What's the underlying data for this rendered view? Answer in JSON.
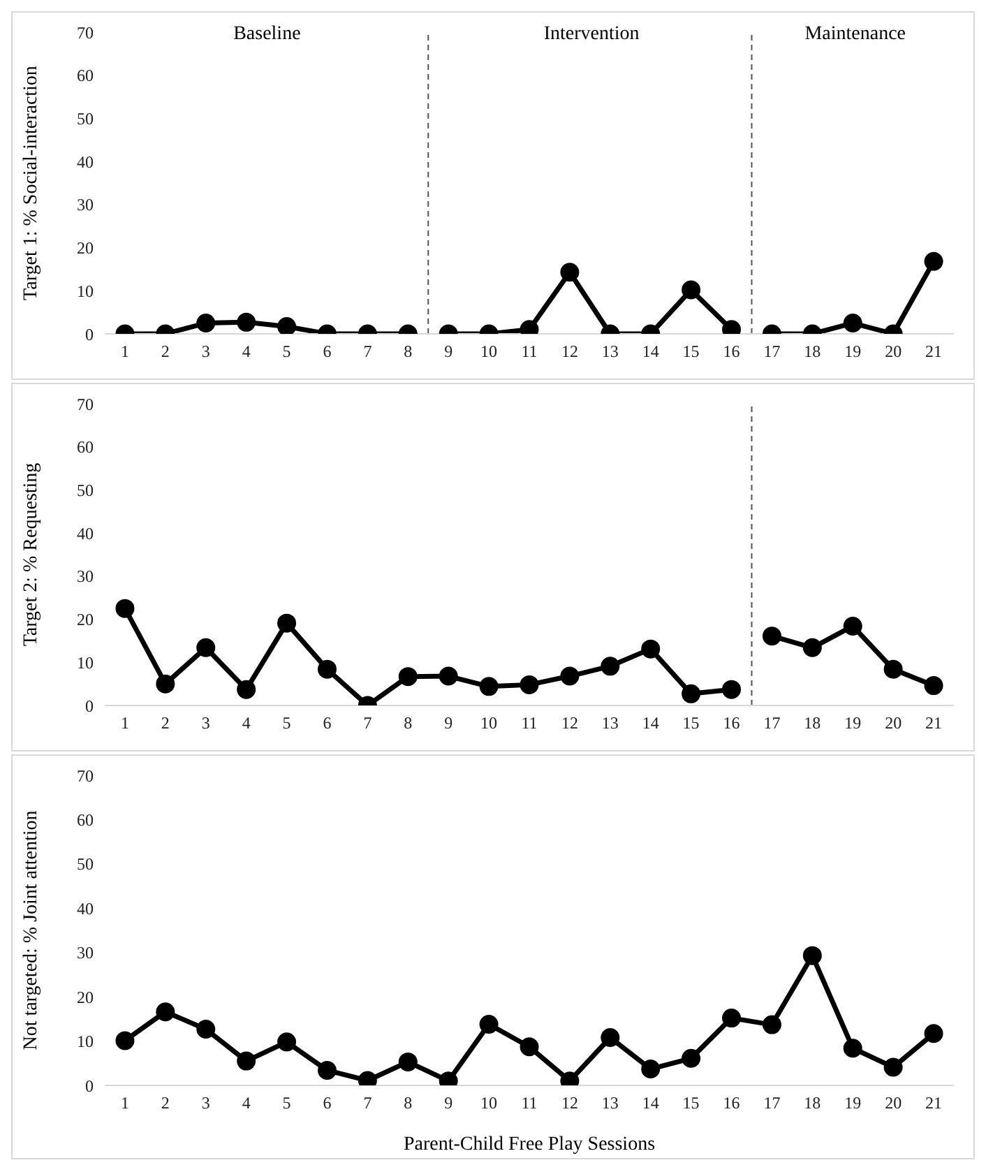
{
  "chart_data": [
    {
      "type": "line",
      "ylabel": "Target 1: % Social-interaction",
      "xlim": [
        0.5,
        21.5
      ],
      "xticks": [
        1,
        2,
        3,
        4,
        5,
        6,
        7,
        8,
        9,
        10,
        11,
        12,
        13,
        14,
        15,
        16,
        17,
        18,
        19,
        20,
        21
      ],
      "ylim": [
        0,
        70
      ],
      "yticks": [
        0,
        10,
        20,
        30,
        40,
        50,
        60,
        70
      ],
      "marker": "circle",
      "line_style": "solid",
      "annotations": [
        "Baseline",
        "Intervention",
        "Maintenance"
      ],
      "ref_lines": [
        {
          "axis": "x",
          "value": 8.5,
          "color": "#555555",
          "line_style": "dashed"
        },
        {
          "axis": "x",
          "value": 16.5,
          "color": "#555555",
          "line_style": "dashed"
        }
      ],
      "series": [
        {
          "color": "#000000",
          "x": [
            1,
            2,
            3,
            4,
            5,
            6,
            7,
            8
          ],
          "values": [
            0,
            0,
            2.5,
            2.7,
            1.7,
            0,
            0,
            0
          ]
        },
        {
          "color": "#000000",
          "x": [
            9,
            10,
            11,
            12,
            13,
            14,
            15,
            16
          ],
          "values": [
            0,
            0,
            1,
            14.3,
            0,
            0,
            10.2,
            1
          ]
        },
        {
          "color": "#000000",
          "x": [
            17,
            18,
            19,
            20,
            21
          ],
          "values": [
            0,
            0,
            2.5,
            0,
            16.8
          ]
        }
      ]
    },
    {
      "type": "line",
      "ylabel": "Target 2: % Requesting",
      "xlim": [
        0.5,
        21.5
      ],
      "xticks": [
        1,
        2,
        3,
        4,
        5,
        6,
        7,
        8,
        9,
        10,
        11,
        12,
        13,
        14,
        15,
        16,
        17,
        18,
        19,
        20,
        21
      ],
      "ylim": [
        0,
        70
      ],
      "yticks": [
        0,
        10,
        20,
        30,
        40,
        50,
        60,
        70
      ],
      "marker": "circle",
      "line_style": "solid",
      "ref_lines": [
        {
          "axis": "x",
          "value": 16.5,
          "color": "#555555",
          "line_style": "dashed"
        }
      ],
      "series": [
        {
          "color": "#000000",
          "x": [
            1,
            2,
            3,
            4,
            5,
            6,
            7,
            8,
            9,
            10,
            11,
            12,
            13,
            14,
            15,
            16
          ],
          "values": [
            22.5,
            5,
            13.4,
            3.7,
            19.1,
            8.4,
            0,
            6.7,
            6.8,
            4.4,
            4.8,
            6.8,
            9.1,
            13.1,
            2.7,
            3.7
          ]
        },
        {
          "color": "#000000",
          "x": [
            17,
            18,
            19,
            20,
            21
          ],
          "values": [
            16.1,
            13.4,
            18.4,
            8.4,
            4.6
          ]
        }
      ]
    },
    {
      "type": "line",
      "ylabel": "Not targeted: % Joint attention",
      "xlabel": "Parent-Child Free Play Sessions",
      "xlim": [
        0.5,
        21.5
      ],
      "xticks": [
        1,
        2,
        3,
        4,
        5,
        6,
        7,
        8,
        9,
        10,
        11,
        12,
        13,
        14,
        15,
        16,
        17,
        18,
        19,
        20,
        21
      ],
      "ylim": [
        0,
        70
      ],
      "yticks": [
        0,
        10,
        20,
        30,
        40,
        50,
        60,
        70
      ],
      "marker": "circle",
      "line_style": "solid",
      "series": [
        {
          "color": "#000000",
          "x": [
            1,
            2,
            3,
            4,
            5,
            6,
            7,
            8,
            9,
            10,
            11,
            12,
            13,
            14,
            15,
            16,
            17,
            18,
            19,
            20,
            21
          ],
          "values": [
            10.1,
            16.6,
            12.7,
            5.5,
            9.8,
            3.4,
            1.1,
            5.3,
            1,
            13.8,
            8.7,
            1,
            10.8,
            3.7,
            6.1,
            15.2,
            13.7,
            29.3,
            8.4,
            4.1,
            11.7
          ]
        }
      ]
    }
  ]
}
